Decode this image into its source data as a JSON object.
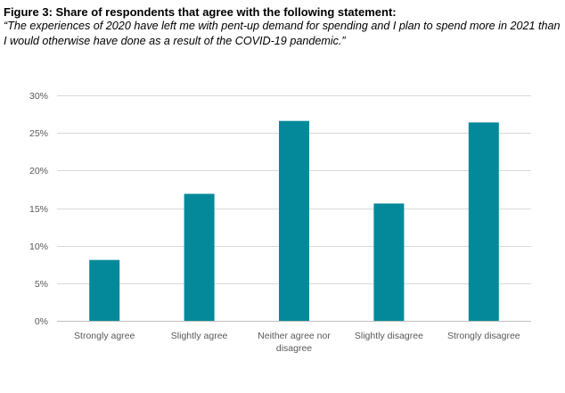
{
  "figure": {
    "title": "Figure 3: Share of respondents that agree with the following statement:",
    "subtitle": "“The experiences of 2020 have left me with pent-up demand for spending and I plan to spend more in 2021 than I would otherwise have done as a result of the COVID-19 pandemic.”"
  },
  "chart_data": {
    "type": "bar",
    "title": "",
    "xlabel": "",
    "ylabel": "",
    "categories": [
      "Strongly agree",
      "Slightly agree",
      "Neither agree nor disagree",
      "Slightly disagree",
      "Strongly disagree"
    ],
    "category_lines": [
      [
        "Strongly agree"
      ],
      [
        "Slightly agree"
      ],
      [
        "Neither agree nor",
        "disagree"
      ],
      [
        "Slightly disagree"
      ],
      [
        "Strongly disagree"
      ]
    ],
    "values": [
      8.1,
      16.9,
      26.6,
      15.6,
      26.4
    ],
    "value_unit": "%",
    "ylim": [
      0,
      30
    ],
    "y_ticks": [
      0,
      5,
      10,
      15,
      20,
      25,
      30
    ],
    "y_tick_labels": [
      "0%",
      "5%",
      "10%",
      "15%",
      "20%",
      "25%",
      "30%"
    ],
    "grid": true,
    "legend": "none",
    "colors": {
      "bar": "#03899A",
      "grid": "#D9D9D9",
      "axis": "#BFBFBF",
      "tick_text": "#595959"
    }
  }
}
